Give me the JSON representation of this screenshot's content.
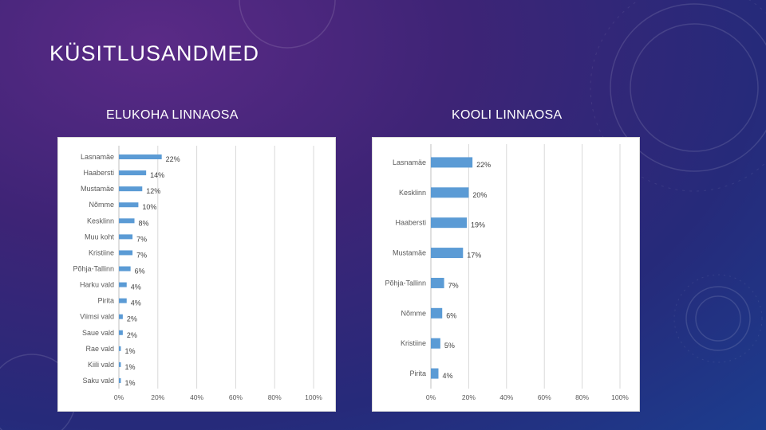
{
  "slide": {
    "title": "KÜSITLUSANDMED"
  },
  "colors": {
    "bar": "#5b9bd5",
    "grid": "#d9d9d9",
    "text": "#595959",
    "heading": "#ffffff"
  },
  "chart_data": [
    {
      "type": "bar",
      "orientation": "horizontal",
      "heading": "ELUKOHA LINNAOSA",
      "categories": [
        "Lasnamäe",
        "Haabersti",
        "Mustamäe",
        "Nõmme",
        "Kesklinn",
        "Muu koht",
        "Kristiine",
        "Põhja-Tallinn",
        "Harku vald",
        "Pirita",
        "Viimsi vald",
        "Saue vald",
        "Rae vald",
        "Kiili vald",
        "Saku vald"
      ],
      "values": [
        22,
        14,
        12,
        10,
        8,
        7,
        7,
        6,
        4,
        4,
        2,
        2,
        1,
        1,
        1
      ],
      "value_labels": [
        "22%",
        "14%",
        "12%",
        "10%",
        "8%",
        "7%",
        "7%",
        "6%",
        "4%",
        "4%",
        "2%",
        "2%",
        "1%",
        "1%",
        "1%"
      ],
      "xlim": [
        0,
        100
      ],
      "xticks": [
        "0%",
        "20%",
        "40%",
        "60%",
        "80%",
        "100%"
      ],
      "grid": true
    },
    {
      "type": "bar",
      "orientation": "horizontal",
      "heading": "KOOLI LINNAOSA",
      "categories": [
        "Lasnamäe",
        "Kesklinn",
        "Haabersti",
        "Mustamäe",
        "Põhja-Tallinn",
        "Nõmme",
        "Kristiine",
        "Pirita"
      ],
      "values": [
        22,
        20,
        19,
        17,
        7,
        6,
        5,
        4
      ],
      "value_labels": [
        "22%",
        "20%",
        "19%",
        "17%",
        "7%",
        "6%",
        "5%",
        "4%"
      ],
      "xlim": [
        0,
        100
      ],
      "xticks": [
        "0%",
        "20%",
        "40%",
        "60%",
        "80%",
        "100%"
      ],
      "grid": true
    }
  ]
}
